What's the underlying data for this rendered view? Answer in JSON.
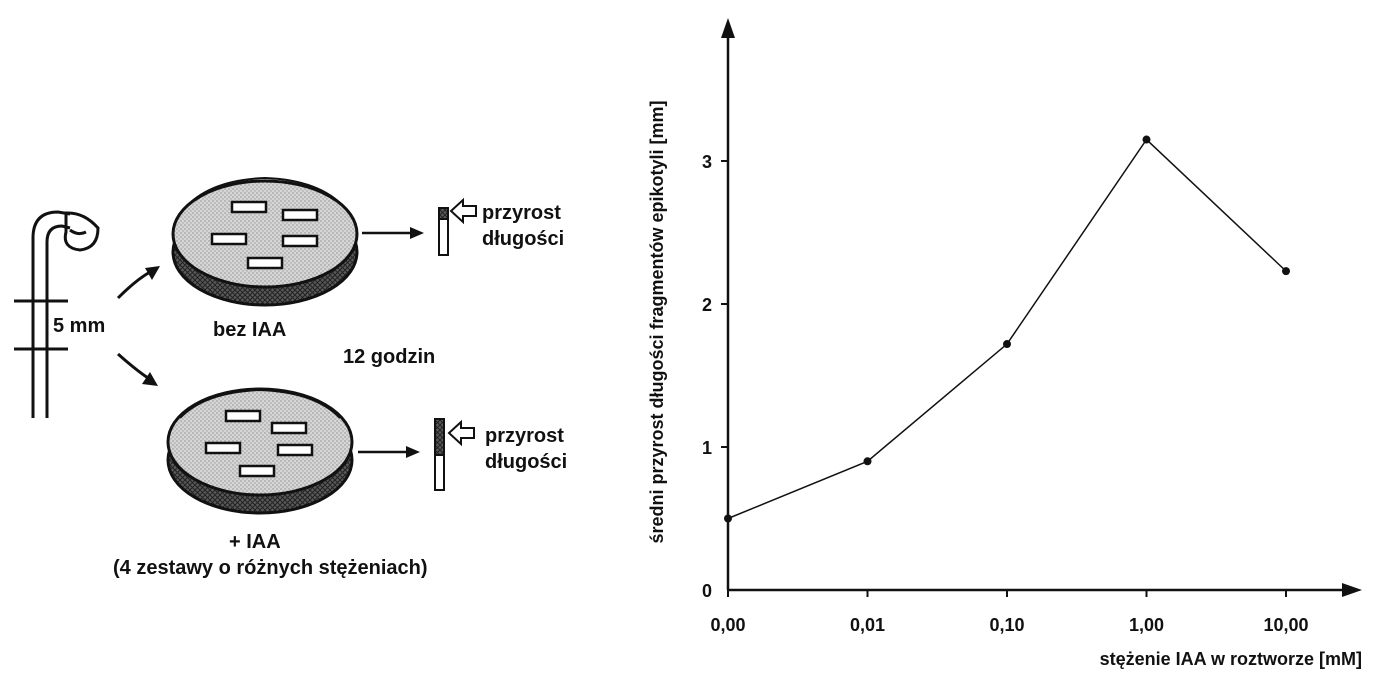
{
  "experiment": {
    "segment_label": "5 mm",
    "dish_control_label": "bez IAA",
    "dish_iaa_label_line1": "+ IAA",
    "dish_iaa_label_line2": "(4 zestawy o różnych stężeniach)",
    "duration_label": "12 godzin",
    "growth_label_line1": "przyrost",
    "growth_label_line2": "długości"
  },
  "chart_data": {
    "type": "line",
    "ylabel": "średni przyrost długości fragmentów epikotyli [mm]",
    "xlabel": "stężenie IAA w roztworze [mM]",
    "categories": [
      "0,00",
      "0,01",
      "0,10",
      "1,00",
      "10,00"
    ],
    "values": [
      0.5,
      0.9,
      1.72,
      3.15,
      2.23
    ],
    "ylim": [
      0,
      3.7
    ],
    "yticks": [
      "0",
      "1",
      "2",
      "3"
    ],
    "grid": false
  }
}
